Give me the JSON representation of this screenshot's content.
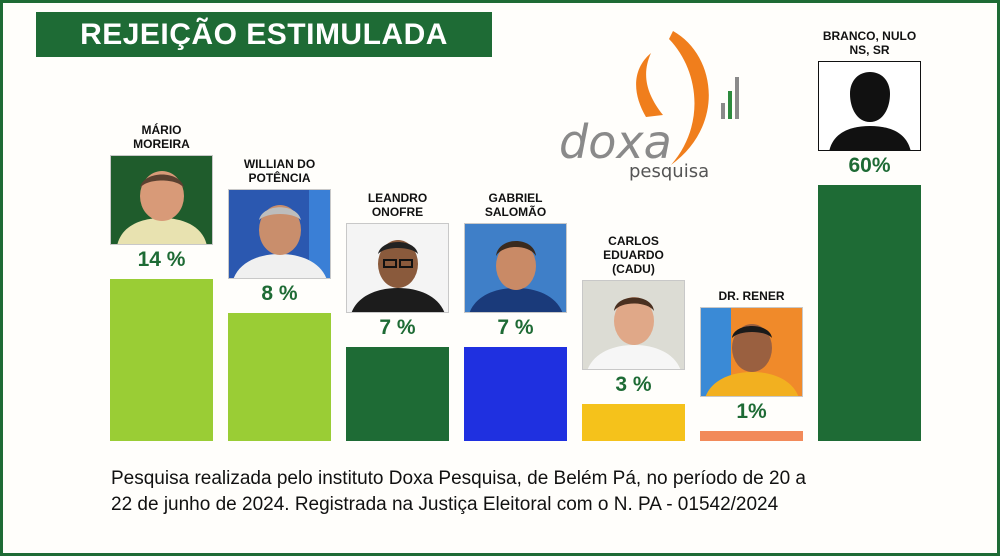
{
  "header": {
    "title": "REJEIÇÃO ESTIMULADA"
  },
  "logo": {
    "word": "doxa",
    "sub": "pesquisa",
    "colors": {
      "orange": "#f07e1c",
      "gray": "#8a8a8a",
      "green": "#2e8b3e"
    }
  },
  "chart_data": {
    "type": "bar",
    "title": "REJEIÇÃO ESTIMULADA",
    "categories": [
      [
        "MÁRIO",
        "MOREIRA"
      ],
      [
        "WILLIAN DO",
        "POTÊNCIA"
      ],
      [
        "LEANDRO",
        "ONOFRE"
      ],
      [
        "GABRIEL",
        "SALOMÃO"
      ],
      [
        "CARLOS",
        "EDUARDO",
        "(CADU)"
      ],
      [
        "DR. RENER"
      ],
      [
        "BRANCO, NULO",
        "NS, SR"
      ]
    ],
    "values": [
      14,
      8,
      7,
      7,
      3,
      1,
      60
    ],
    "value_labels": [
      "14 %",
      "8 %",
      "7 %",
      "7 %",
      "3 %",
      "1%",
      "60%"
    ],
    "bar_colors": [
      "#9acd35",
      "#9acd35",
      "#1e6b35",
      "#1f30e0",
      "#f5c21b",
      "#f28a5a",
      "#1e6b35"
    ],
    "ylim": [
      0,
      60
    ],
    "grid": false,
    "legend": "none"
  },
  "footnote": {
    "line1": "Pesquisa realizada pelo instituto Doxa Pesquisa, de Belém Pá,  no período de 20 a",
    "line2": "22 de junho de 2024. Registrada na Justiça Eleitoral com o N. PA - 01542/2024"
  }
}
